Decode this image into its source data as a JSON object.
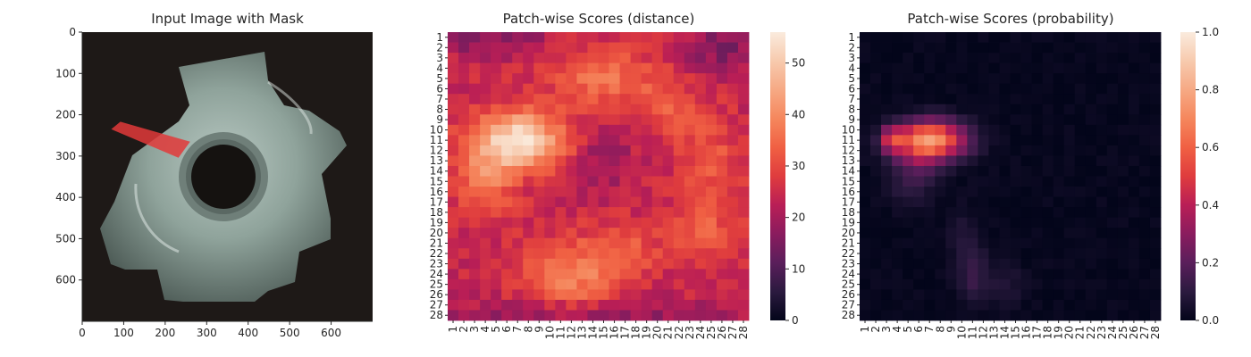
{
  "colors": {
    "rocket_colormap": [
      "#03051a",
      "#2b1a3f",
      "#5a1e5b",
      "#8a1c5e",
      "#b91e56",
      "#df3c3e",
      "#f06043",
      "#f5875d",
      "#f6a984",
      "#f7caae",
      "#faebdd"
    ],
    "mask_color": "#e23a3a",
    "background": "#ffffff"
  },
  "chart_data": [
    {
      "type": "image",
      "title": "Input Image with Mask",
      "xlabel": "",
      "ylabel": "",
      "xlim": [
        0,
        700
      ],
      "ylim": [
        700,
        0
      ],
      "xticks": [
        0,
        100,
        200,
        300,
        400,
        500,
        600
      ],
      "yticks": [
        0,
        100,
        200,
        300,
        400,
        500,
        600
      ],
      "xtick_labels": [
        "0",
        "100",
        "200",
        "300",
        "400",
        "500",
        "600"
      ],
      "ytick_labels": [
        "0",
        "100",
        "200",
        "300",
        "400",
        "500",
        "600"
      ],
      "mask_polygon": [
        [
          70,
          235
        ],
        [
          92,
          217
        ],
        [
          260,
          265
        ],
        [
          232,
          304
        ]
      ]
    },
    {
      "type": "heatmap",
      "title": "Patch-wise Scores (distance)",
      "xlabel": "",
      "ylabel": "",
      "rows": 28,
      "cols": 28,
      "row_labels": [
        "1",
        "2",
        "3",
        "4",
        "5",
        "6",
        "7",
        "8",
        "9",
        "10",
        "11",
        "12",
        "13",
        "14",
        "15",
        "16",
        "17",
        "18",
        "19",
        "20",
        "21",
        "22",
        "23",
        "24",
        "25",
        "26",
        "27",
        "28"
      ],
      "col_labels": [
        "1",
        "2",
        "3",
        "4",
        "5",
        "6",
        "7",
        "8",
        "9",
        "10",
        "11",
        "12",
        "13",
        "14",
        "15",
        "16",
        "17",
        "18",
        "19",
        "20",
        "21",
        "22",
        "23",
        "24",
        "25",
        "26",
        "27",
        "28"
      ],
      "vmin": 0,
      "vmax": 56,
      "colorbar_ticks": [
        0,
        10,
        20,
        30,
        40,
        50
      ],
      "colorbar_labels": [
        "0",
        "10",
        "20",
        "30",
        "40",
        "50"
      ],
      "baseline": 24,
      "hotspots": [
        {
          "row": 11,
          "col": 7,
          "peak": 30,
          "sigma_r": 2.0,
          "sigma_c": 3.0
        },
        {
          "row": 15,
          "col": 4,
          "peak": 12,
          "sigma_r": 2.5,
          "sigma_c": 2.0
        },
        {
          "row": 5,
          "col": 15,
          "peak": 12,
          "sigma_r": 2.0,
          "sigma_c": 3.5
        },
        {
          "row": 8,
          "col": 21,
          "peak": 8,
          "sigma_r": 2.0,
          "sigma_c": 2.0
        },
        {
          "row": 13,
          "col": 25,
          "peak": 8,
          "sigma_r": 3.0,
          "sigma_c": 2.0
        },
        {
          "row": 20,
          "col": 24,
          "peak": 9,
          "sigma_r": 2.0,
          "sigma_c": 2.5
        },
        {
          "row": 24,
          "col": 12,
          "peak": 14,
          "sigma_r": 2.5,
          "sigma_c": 3.0
        },
        {
          "row": 22,
          "col": 17,
          "peak": 8,
          "sigma_r": 2.0,
          "sigma_c": 2.0
        },
        {
          "row": 1,
          "col": 4,
          "peak": -8,
          "sigma_r": 1.2,
          "sigma_c": 4.0
        },
        {
          "row": 2,
          "col": 26,
          "peak": -9,
          "sigma_r": 1.5,
          "sigma_c": 2.5
        },
        {
          "row": 13,
          "col": 15,
          "peak": -6,
          "sigma_r": 2.0,
          "sigma_c": 2.0
        },
        {
          "row": 28,
          "col": 14,
          "peak": -7,
          "sigma_r": 1.0,
          "sigma_c": 10.0
        }
      ]
    },
    {
      "type": "heatmap",
      "title": "Patch-wise Scores (probability)",
      "xlabel": "",
      "ylabel": "",
      "rows": 28,
      "cols": 28,
      "row_labels": [
        "1",
        "2",
        "3",
        "4",
        "5",
        "6",
        "7",
        "8",
        "9",
        "10",
        "11",
        "12",
        "13",
        "14",
        "15",
        "16",
        "17",
        "18",
        "19",
        "20",
        "21",
        "22",
        "23",
        "24",
        "25",
        "26",
        "27",
        "28"
      ],
      "col_labels": [
        "1",
        "2",
        "3",
        "4",
        "5",
        "6",
        "7",
        "8",
        "9",
        "10",
        "11",
        "12",
        "13",
        "14",
        "15",
        "16",
        "17",
        "18",
        "19",
        "20",
        "21",
        "22",
        "23",
        "24",
        "25",
        "26",
        "27",
        "28"
      ],
      "vmin": 0,
      "vmax": 1.0,
      "colorbar_ticks": [
        0.0,
        0.2,
        0.4,
        0.6,
        0.8,
        1.0
      ],
      "colorbar_labels": [
        "0.0",
        "0.2",
        "0.4",
        "0.6",
        "0.8",
        "1.0"
      ],
      "baseline": 0.01,
      "hotspots": [
        {
          "row": 11,
          "col": 7,
          "peak": 0.75,
          "sigma_r": 1.3,
          "sigma_c": 2.3
        },
        {
          "row": 11,
          "col": 3.5,
          "peak": 0.35,
          "sigma_r": 0.9,
          "sigma_c": 0.6
        },
        {
          "row": 13.5,
          "col": 6,
          "peak": 0.15,
          "sigma_r": 1.2,
          "sigma_c": 1.5
        },
        {
          "row": 16,
          "col": 5,
          "peak": 0.08,
          "sigma_r": 1.2,
          "sigma_c": 1.5
        },
        {
          "row": 24,
          "col": 11,
          "peak": 0.12,
          "sigma_r": 2.0,
          "sigma_c": 1.0
        },
        {
          "row": 25,
          "col": 14,
          "peak": 0.07,
          "sigma_r": 1.5,
          "sigma_c": 1.2
        },
        {
          "row": 20,
          "col": 10,
          "peak": 0.05,
          "sigma_r": 2.0,
          "sigma_c": 1.0
        }
      ]
    }
  ]
}
